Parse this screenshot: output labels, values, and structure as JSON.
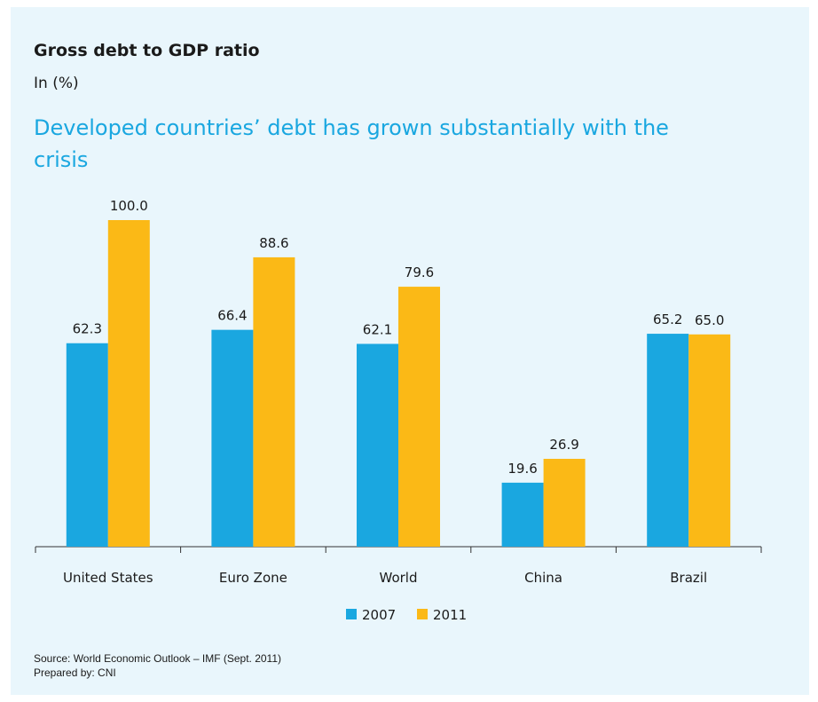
{
  "header": {
    "title": "Gross debt to GDP ratio",
    "unit": "In (%)",
    "subtitle": "Developed countries’ debt has grown substantially with the crisis"
  },
  "footer": {
    "source": "Source: World Economic Outlook – IMF (Sept. 2011)",
    "prepared": "Prepared by: CNI"
  },
  "chart_data": {
    "type": "bar",
    "categories": [
      "United States",
      "Euro Zone",
      "World",
      "China",
      "Brazil"
    ],
    "series": [
      {
        "name": "2007",
        "color": "#1aa7e0",
        "values": [
          62.3,
          66.4,
          62.1,
          19.6,
          65.2
        ]
      },
      {
        "name": "2011",
        "color": "#fbb916",
        "values": [
          100.0,
          88.6,
          79.6,
          26.9,
          65.0
        ]
      }
    ],
    "ylim": [
      0,
      100
    ],
    "grid": false,
    "legend": "bottom-center",
    "value_labels": true,
    "value_format_decimals": 1
  }
}
